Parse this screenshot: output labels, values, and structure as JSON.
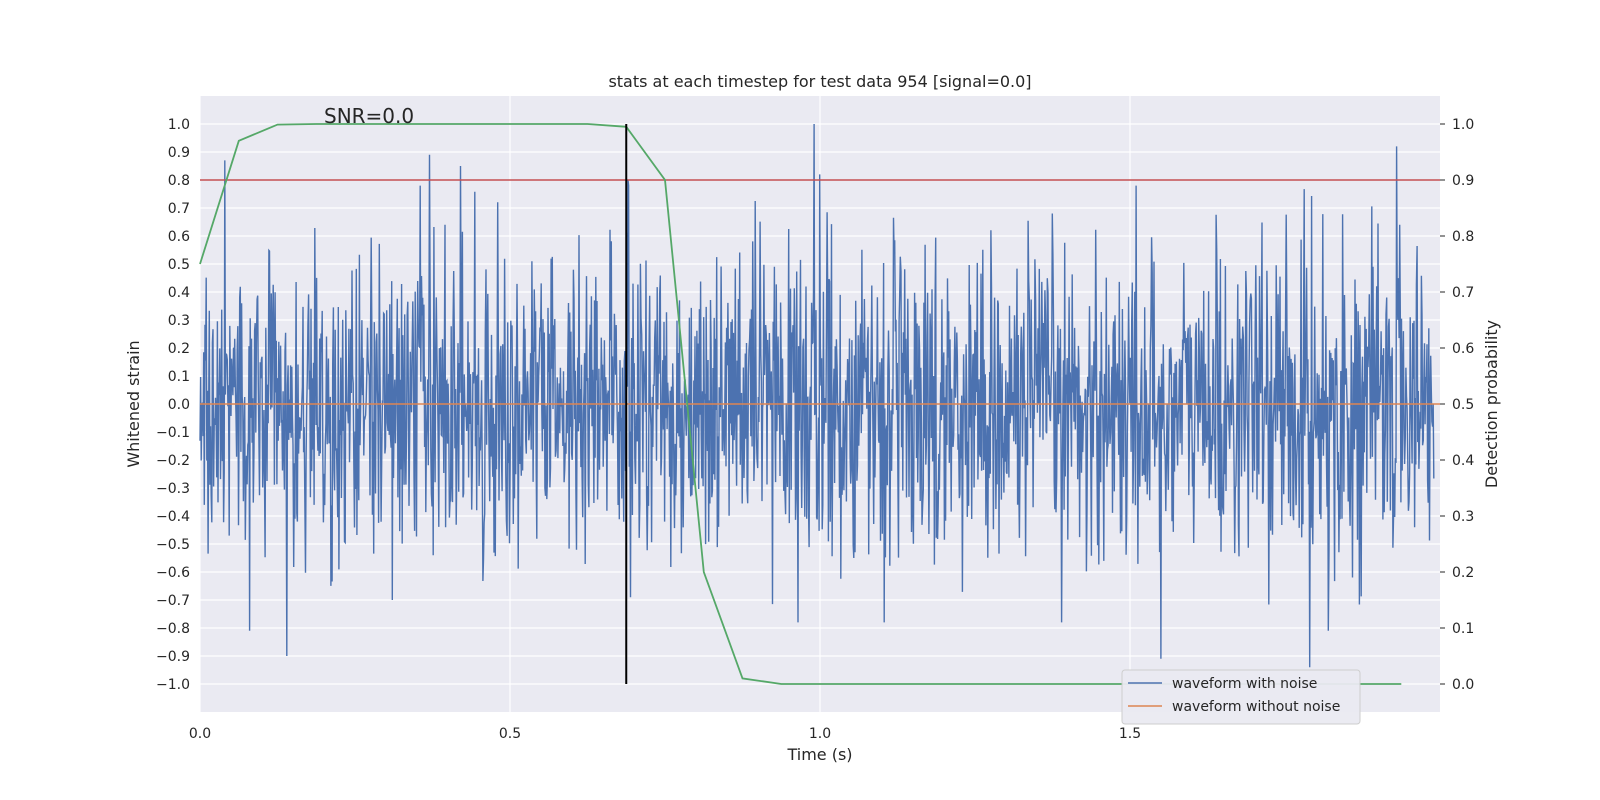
{
  "chart_data": {
    "type": "line",
    "title": "stats at each timestep for test data 954 [signal=0.0]",
    "xlabel": "Time (s)",
    "ylabel": "Whitened strain",
    "y2label": "Detection probability",
    "annotation": "SNR=0.0",
    "xlim": [
      0.0,
      2.0
    ],
    "ylim": [
      -1.1,
      1.1
    ],
    "y2lim": [
      -0.05,
      1.05
    ],
    "x_ticks": [
      "0.0",
      "0.5",
      "1.0",
      "1.5"
    ],
    "x_tick_values": [
      0.0,
      0.5,
      1.0,
      1.5
    ],
    "y_ticks": [
      "1.0",
      "0.9",
      "0.8",
      "0.7",
      "0.6",
      "0.5",
      "0.4",
      "0.3",
      "0.2",
      "0.1",
      "0.0",
      "−0.1",
      "−0.2",
      "−0.3",
      "−0.4",
      "−0.5",
      "−0.6",
      "−0.7",
      "−0.8",
      "−0.9",
      "−1.0"
    ],
    "y_tick_values": [
      1.0,
      0.9,
      0.8,
      0.7,
      0.6,
      0.5,
      0.4,
      0.3,
      0.2,
      0.1,
      0.0,
      -0.1,
      -0.2,
      -0.3,
      -0.4,
      -0.5,
      -0.6,
      -0.7,
      -0.8,
      -0.9,
      -1.0
    ],
    "y2_ticks": [
      "1.0",
      "0.9",
      "0.8",
      "0.7",
      "0.6",
      "0.5",
      "0.4",
      "0.3",
      "0.2",
      "0.1",
      "0.0"
    ],
    "y2_tick_values": [
      1.0,
      0.9,
      0.8,
      0.7,
      0.6,
      0.5,
      0.4,
      0.3,
      0.2,
      0.1,
      0.0
    ],
    "grid": true,
    "legend_position": "lower-right",
    "colors": {
      "background": "#eaeaf2",
      "grid": "#ffffff",
      "noise": "#4c72b0",
      "clean": "#dd8452",
      "probability": "#55a868",
      "threshold": "#c44e52",
      "marker": "#000000"
    },
    "series": [
      {
        "name": "waveform with noise",
        "axis": "left",
        "note": "dense noise trace of ~2000 samples within about ±0.9, peaks up to 1.0",
        "approx_range": [
          -0.95,
          1.0
        ],
        "peaks": [
          [
            0.99,
            1.0
          ],
          [
            1.93,
            0.92
          ],
          [
            0.04,
            0.87
          ],
          [
            0.37,
            0.89
          ],
          [
            0.42,
            0.85
          ],
          [
            1.0,
            0.82
          ],
          [
            0.69,
            0.8
          ]
        ],
        "troughs": [
          [
            0.14,
            -0.9
          ],
          [
            1.79,
            -0.94
          ],
          [
            1.55,
            -0.91
          ],
          [
            0.08,
            -0.81
          ],
          [
            1.82,
            -0.81
          ],
          [
            0.31,
            -0.7
          ]
        ]
      },
      {
        "name": "waveform without noise",
        "axis": "left",
        "x": [
          0.0,
          2.0
        ],
        "y": [
          0.0,
          0.0
        ]
      },
      {
        "name": "detection probability",
        "axis": "right",
        "x": [
          0.0,
          0.0625,
          0.125,
          0.1875,
          0.25,
          0.3125,
          0.375,
          0.4375,
          0.5,
          0.5625,
          0.625,
          0.6875,
          0.75,
          0.8125,
          0.875,
          0.9375,
          1.0,
          1.0625,
          1.125,
          1.1875,
          1.25,
          1.3125,
          1.375,
          1.4375,
          1.5,
          1.5625,
          1.625,
          1.6875,
          1.75,
          1.8125,
          1.875,
          1.9375
        ],
        "y": [
          0.75,
          0.97,
          0.999,
          1.0,
          1.0,
          1.0,
          1.0,
          1.0,
          1.0,
          1.0,
          1.0,
          0.995,
          0.9,
          0.2,
          0.01,
          0.0,
          0.0,
          0.0,
          0.0,
          0.0,
          0.0,
          0.0,
          0.0,
          0.0,
          0.0,
          0.0,
          0.0,
          0.0,
          0.0,
          0.0,
          0.0,
          0.0
        ]
      }
    ],
    "threshold": {
      "axis": "right",
      "value": 0.9
    },
    "marker": {
      "x": 0.6875,
      "axis": "right",
      "from": 0.0,
      "to": 1.0
    }
  },
  "legend": {
    "items": [
      {
        "label": "waveform with noise",
        "color": "#4c72b0"
      },
      {
        "label": "waveform without noise",
        "color": "#dd8452"
      }
    ]
  }
}
